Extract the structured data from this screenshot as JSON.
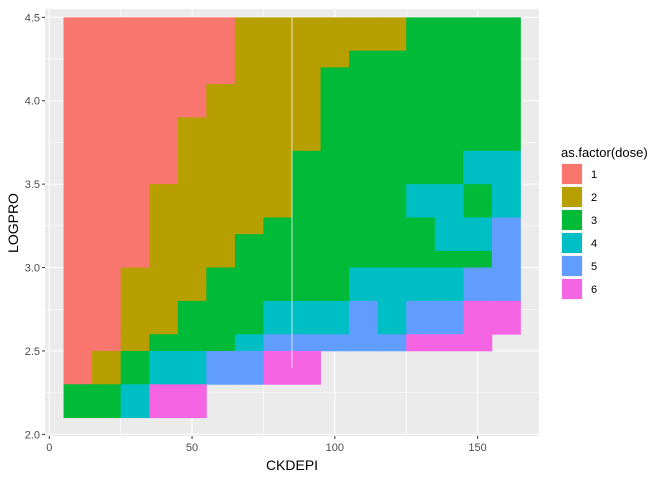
{
  "chart_data": {
    "type": "heatmap",
    "xlabel": "CKDEPI",
    "ylabel": "LOGPRO",
    "xlim": [
      -1.5,
      171.5
    ],
    "ylim": [
      1.99,
      4.55
    ],
    "x_ticks": [
      0,
      50,
      100,
      150
    ],
    "y_ticks": [
      2.0,
      2.5,
      3.0,
      3.5,
      4.0,
      4.5
    ],
    "x_tick_labels": [
      "0",
      "50",
      "100",
      "150"
    ],
    "y_tick_labels": [
      "2.0",
      "2.5",
      "3.0",
      "3.5",
      "4.0",
      "4.5"
    ],
    "tile_width": 10,
    "tile_height": 0.1,
    "grid": true,
    "legend": {
      "title": "as.factor(dose)",
      "position": "right",
      "levels": [
        "1",
        "2",
        "3",
        "4",
        "5",
        "6"
      ],
      "colors": [
        "#F8766D",
        "#B79F00",
        "#00BA38",
        "#00BFC4",
        "#619CFF",
        "#F564E3"
      ]
    },
    "x_centers": [
      10,
      20,
      30,
      40,
      50,
      60,
      70,
      80,
      90,
      100,
      110,
      120,
      130,
      140,
      150,
      160
    ],
    "rows": [
      {
        "y": 4.45,
        "dose": [
          1,
          1,
          1,
          1,
          1,
          1,
          2,
          2,
          2,
          2,
          2,
          2,
          3,
          3,
          3,
          3
        ]
      },
      {
        "y": 4.35,
        "dose": [
          1,
          1,
          1,
          1,
          1,
          1,
          2,
          2,
          2,
          2,
          2,
          2,
          3,
          3,
          3,
          3
        ]
      },
      {
        "y": 4.25,
        "dose": [
          1,
          1,
          1,
          1,
          1,
          1,
          2,
          2,
          2,
          2,
          3,
          3,
          3,
          3,
          3,
          3
        ]
      },
      {
        "y": 4.15,
        "dose": [
          1,
          1,
          1,
          1,
          1,
          1,
          2,
          2,
          2,
          3,
          3,
          3,
          3,
          3,
          3,
          3
        ]
      },
      {
        "y": 4.05,
        "dose": [
          1,
          1,
          1,
          1,
          1,
          2,
          2,
          2,
          2,
          3,
          3,
          3,
          3,
          3,
          3,
          3
        ]
      },
      {
        "y": 3.95,
        "dose": [
          1,
          1,
          1,
          1,
          1,
          2,
          2,
          2,
          2,
          3,
          3,
          3,
          3,
          3,
          3,
          3
        ]
      },
      {
        "y": 3.85,
        "dose": [
          1,
          1,
          1,
          1,
          2,
          2,
          2,
          2,
          2,
          3,
          3,
          3,
          3,
          3,
          3,
          3
        ]
      },
      {
        "y": 3.75,
        "dose": [
          1,
          1,
          1,
          1,
          2,
          2,
          2,
          2,
          2,
          3,
          3,
          3,
          3,
          3,
          3,
          3
        ]
      },
      {
        "y": 3.65,
        "dose": [
          1,
          1,
          1,
          1,
          2,
          2,
          2,
          2,
          3,
          3,
          3,
          3,
          3,
          3,
          4,
          4
        ]
      },
      {
        "y": 3.55,
        "dose": [
          1,
          1,
          1,
          1,
          2,
          2,
          2,
          2,
          3,
          3,
          3,
          3,
          3,
          3,
          4,
          4
        ]
      },
      {
        "y": 3.45,
        "dose": [
          1,
          1,
          1,
          2,
          2,
          2,
          2,
          2,
          3,
          3,
          3,
          3,
          4,
          4,
          3,
          4
        ]
      },
      {
        "y": 3.35,
        "dose": [
          1,
          1,
          1,
          2,
          2,
          2,
          2,
          2,
          3,
          3,
          3,
          3,
          4,
          4,
          3,
          4
        ]
      },
      {
        "y": 3.25,
        "dose": [
          1,
          1,
          1,
          2,
          2,
          2,
          2,
          3,
          3,
          3,
          3,
          3,
          3,
          4,
          4,
          5
        ]
      },
      {
        "y": 3.15,
        "dose": [
          1,
          1,
          1,
          2,
          2,
          2,
          3,
          3,
          3,
          3,
          3,
          3,
          3,
          4,
          4,
          5
        ]
      },
      {
        "y": 3.05,
        "dose": [
          1,
          1,
          1,
          2,
          2,
          2,
          3,
          3,
          3,
          3,
          3,
          3,
          3,
          3,
          3,
          5
        ]
      },
      {
        "y": 2.95,
        "dose": [
          1,
          1,
          2,
          2,
          2,
          3,
          3,
          3,
          3,
          3,
          4,
          4,
          4,
          4,
          5,
          5
        ]
      },
      {
        "y": 2.85,
        "dose": [
          1,
          1,
          2,
          2,
          2,
          3,
          3,
          3,
          3,
          3,
          4,
          4,
          4,
          4,
          5,
          5
        ]
      },
      {
        "y": 2.75,
        "dose": [
          1,
          1,
          2,
          2,
          3,
          3,
          3,
          4,
          4,
          4,
          5,
          4,
          5,
          5,
          6,
          6
        ]
      },
      {
        "y": 2.65,
        "dose": [
          1,
          1,
          2,
          2,
          3,
          3,
          3,
          4,
          4,
          4,
          5,
          4,
          5,
          5,
          6,
          6
        ]
      },
      {
        "y": 2.55,
        "dose": [
          1,
          1,
          2,
          3,
          3,
          3,
          4,
          5,
          5,
          5,
          5,
          5,
          6,
          6,
          6,
          null
        ]
      },
      {
        "y": 2.45,
        "dose": [
          1,
          2,
          3,
          4,
          4,
          5,
          5,
          6,
          6,
          null,
          null,
          null,
          null,
          null,
          null,
          null
        ]
      },
      {
        "y": 2.35,
        "dose": [
          1,
          2,
          3,
          4,
          4,
          5,
          5,
          6,
          6,
          null,
          null,
          null,
          null,
          null,
          null,
          null
        ]
      },
      {
        "y": 2.25,
        "dose": [
          3,
          3,
          4,
          6,
          6,
          null,
          null,
          null,
          null,
          null,
          null,
          null,
          null,
          null,
          null,
          null
        ]
      },
      {
        "y": 2.15,
        "dose": [
          3,
          3,
          4,
          6,
          6,
          null,
          null,
          null,
          null,
          null,
          null,
          null,
          null,
          null,
          null,
          null
        ]
      }
    ]
  }
}
